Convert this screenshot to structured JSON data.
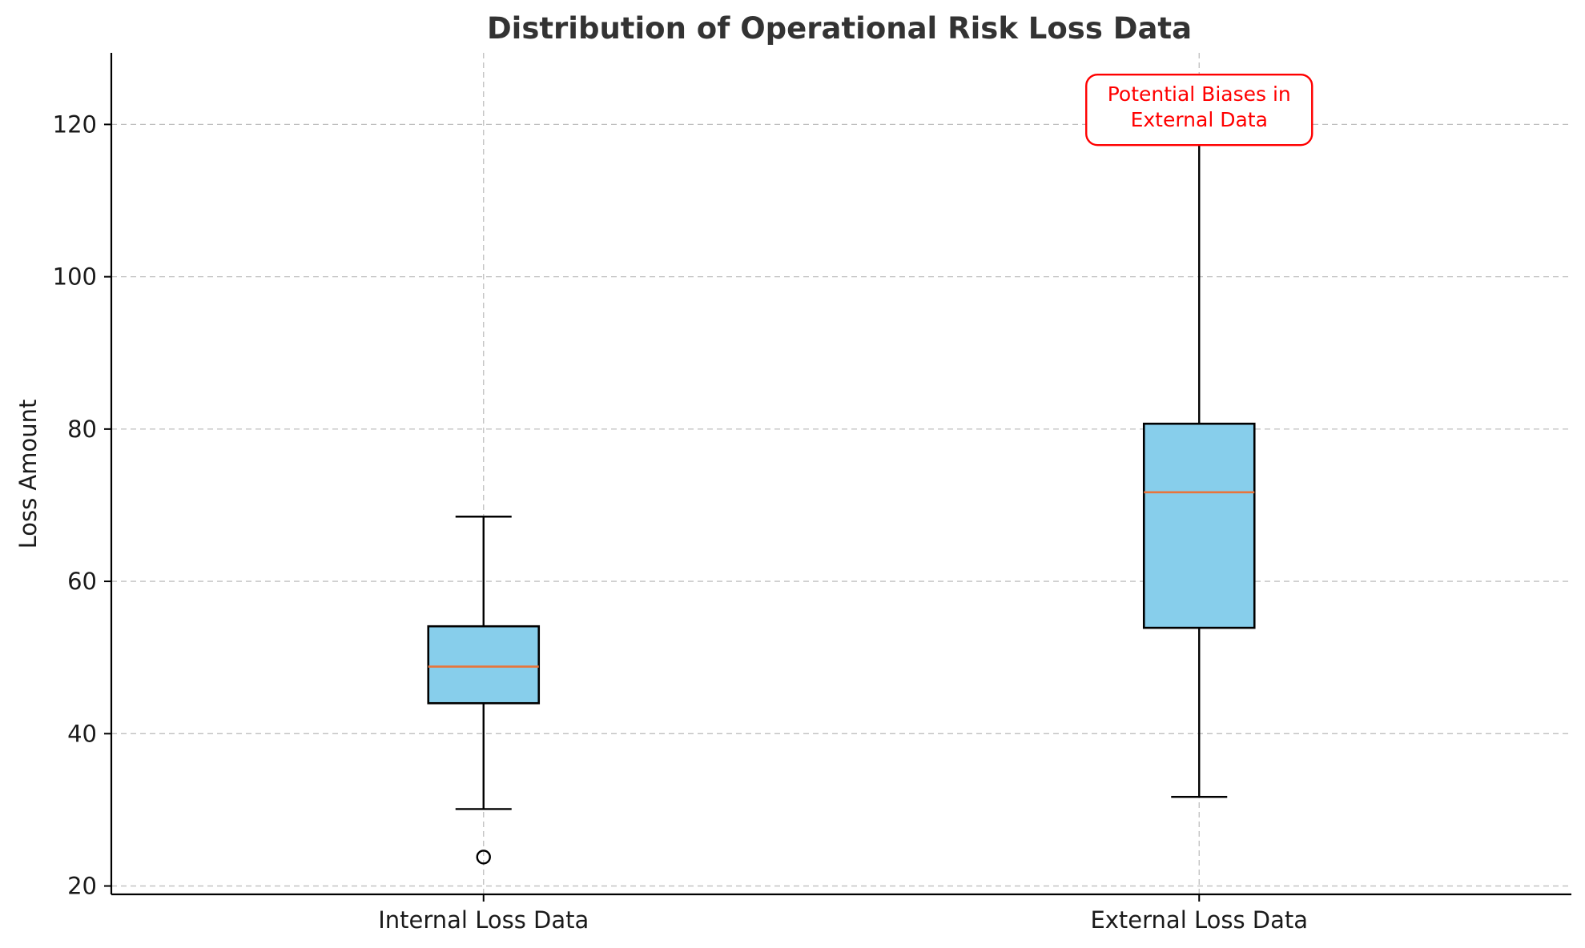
{
  "chart_data": {
    "type": "box",
    "title": "Distribution of Operational Risk Loss Data",
    "xlabel": "",
    "ylabel": "Loss Amount",
    "ylim": [
      18.9,
      129.4
    ],
    "yticks": [
      20,
      40,
      60,
      80,
      100,
      120
    ],
    "grid": true,
    "categories": [
      "Internal Loss Data",
      "External Loss Data"
    ],
    "boxes": [
      {
        "category": "Internal Loss Data",
        "whisker_low": 30.1,
        "q1": 44.0,
        "median": 48.8,
        "q3": 54.1,
        "whisker_high": 68.5,
        "outliers": [
          23.8
        ]
      },
      {
        "category": "External Loss Data",
        "whisker_low": 31.7,
        "q1": 53.9,
        "median": 71.7,
        "q3": 80.7,
        "whisker_high": 124.8,
        "outliers": []
      }
    ],
    "annotation": {
      "lines": [
        "Potential Biases in",
        "External Data"
      ],
      "target_category": "External Loss Data",
      "value": 121.5
    },
    "colors": {
      "box_fill": "#87ceeb",
      "median": "#e8743b",
      "annotation": "#ff0000",
      "grid": "#bfbfbf"
    }
  }
}
